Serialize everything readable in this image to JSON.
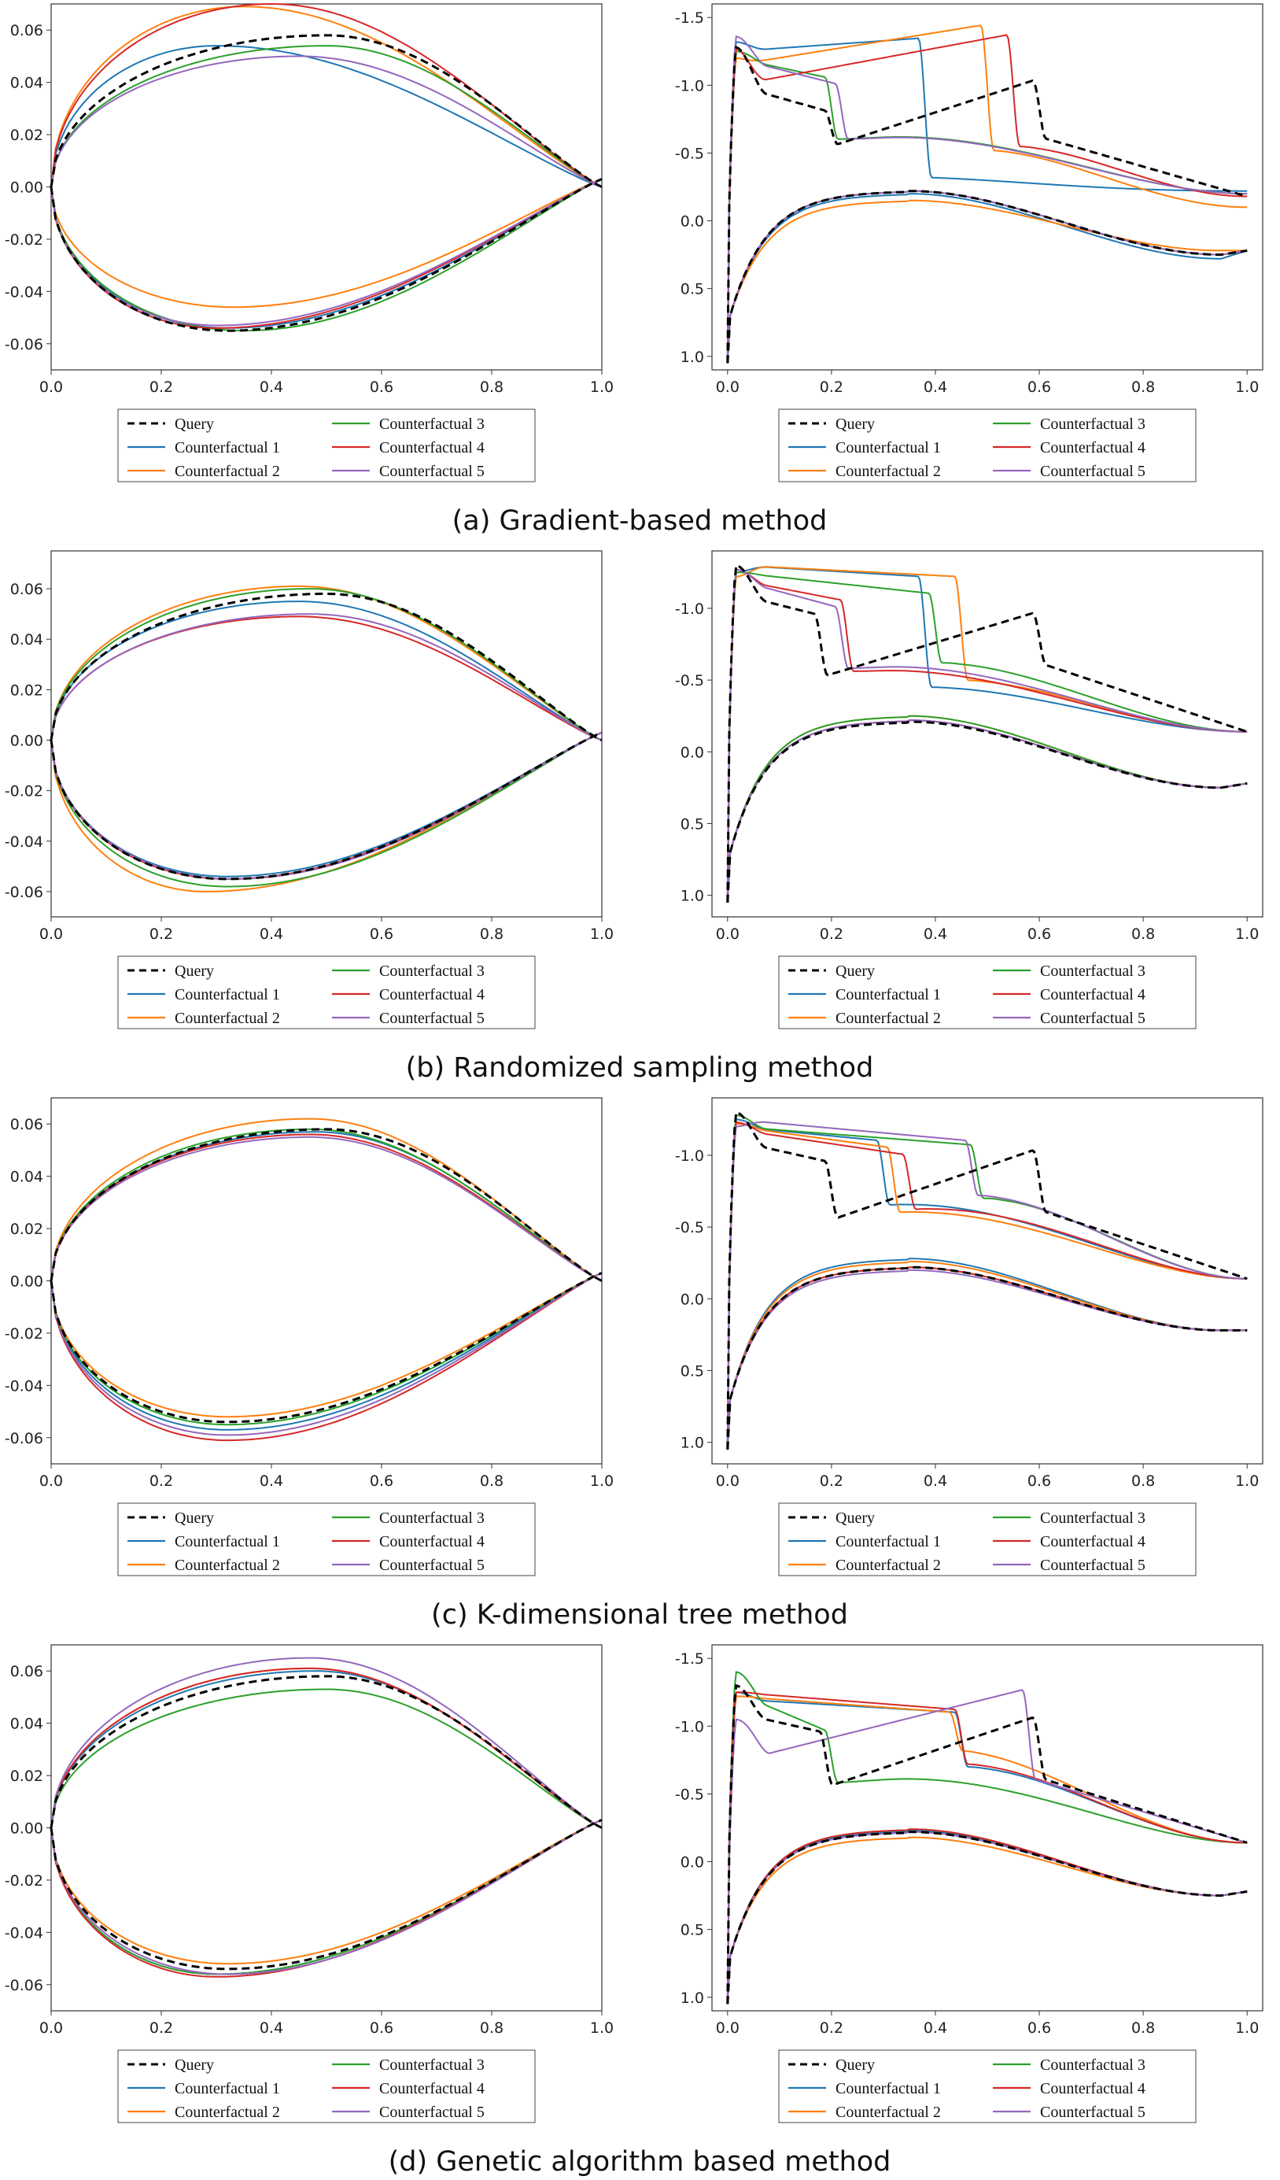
{
  "colors": {
    "Query": "#000000",
    "Counterfactual 1": "#1f77b4",
    "Counterfactual 2": "#ff7f0e",
    "Counterfactual 3": "#2ca02c",
    "Counterfactual 4": "#d62728",
    "Counterfactual 5": "#9467bd"
  },
  "legend_labels": [
    "Query",
    "Counterfactual 1",
    "Counterfactual 2",
    "Counterfactual 3",
    "Counterfactual 4",
    "Counterfactual 5"
  ],
  "chart_data": [
    {
      "type": "line",
      "caption": "(a) Gradient-based method",
      "title": "",
      "xlabel": "",
      "ylabel": "",
      "airfoil": {
        "xlim": [
          0,
          1
        ],
        "ylim": [
          -0.07,
          0.07
        ],
        "xticks": [
          "0.0",
          "0.2",
          "0.4",
          "0.6",
          "0.8",
          "1.0"
        ],
        "yticks": [
          "-0.06",
          "-0.04",
          "-0.02",
          "0.00",
          "0.02",
          "0.04",
          "0.06"
        ],
        "series": [
          {
            "name": "Query",
            "upper_max": 0.058,
            "upper_xmax": 0.5,
            "lower_min": -0.055,
            "lower_xmin": 0.32
          },
          {
            "name": "Counterfactual 1",
            "upper_max": 0.054,
            "upper_xmax": 0.3,
            "lower_min": -0.054,
            "lower_xmin": 0.32
          },
          {
            "name": "Counterfactual 2",
            "upper_max": 0.069,
            "upper_xmax": 0.35,
            "lower_min": -0.046,
            "lower_xmin": 0.33
          },
          {
            "name": "Counterfactual 3",
            "upper_max": 0.054,
            "upper_xmax": 0.5,
            "lower_min": -0.055,
            "lower_xmin": 0.35
          },
          {
            "name": "Counterfactual 4",
            "upper_max": 0.07,
            "upper_xmax": 0.4,
            "lower_min": -0.054,
            "lower_xmin": 0.3
          },
          {
            "name": "Counterfactual 5",
            "upper_max": 0.05,
            "upper_xmax": 0.45,
            "lower_min": -0.053,
            "lower_xmin": 0.3
          }
        ]
      },
      "cp": {
        "xlim": [
          -0.03,
          1.03
        ],
        "ylim": [
          1.1,
          -1.6
        ],
        "xticks": [
          "0.0",
          "0.2",
          "0.4",
          "0.6",
          "0.8",
          "1.0"
        ],
        "yticks": [
          "-1.5",
          "-1.0",
          "-0.5",
          "0.0",
          "0.5",
          "1.0"
        ],
        "series": [
          {
            "name": "Query",
            "peak": -1.28,
            "plateau_start": -1.0,
            "plateau_end": -0.8,
            "shock_x": 0.2,
            "post_start": -0.55,
            "post_end": -1.05,
            "jump_x": 0.6,
            "upper_te": -0.18,
            "lower_mid": -0.22,
            "lower_te": 0.25
          },
          {
            "name": "Counterfactual 1",
            "peak": -1.32,
            "plateau_start": -1.25,
            "plateau_end": -1.35,
            "shock_x": 0.38,
            "post_start": -0.32,
            "post_end": -0.25,
            "jump_x": 0.0,
            "upper_te": -0.22,
            "lower_mid": -0.2,
            "lower_te": 0.28
          },
          {
            "name": "Counterfactual 2",
            "peak": -1.2,
            "plateau_start": -1.15,
            "plateau_end": -1.45,
            "shock_x": 0.5,
            "post_start": -0.52,
            "post_end": -0.45,
            "jump_x": 0.0,
            "upper_te": -0.1,
            "lower_mid": -0.15,
            "lower_te": 0.22
          },
          {
            "name": "Counterfactual 3",
            "peak": -1.25,
            "plateau_start": -1.2,
            "plateau_end": -1.05,
            "shock_x": 0.2,
            "post_start": -0.6,
            "post_end": -0.73,
            "jump_x": 0.0,
            "upper_te": -0.2,
            "lower_mid": -0.22,
            "lower_te": 0.25
          },
          {
            "name": "Counterfactual 4",
            "peak": -1.27,
            "plateau_start": -1.0,
            "plateau_end": -1.38,
            "shock_x": 0.55,
            "post_start": -0.55,
            "post_end": -0.5,
            "jump_x": 0.0,
            "upper_te": -0.18,
            "lower_mid": -0.22,
            "lower_te": 0.25
          },
          {
            "name": "Counterfactual 5",
            "peak": -1.36,
            "plateau_start": -1.2,
            "plateau_end": -1.0,
            "shock_x": 0.22,
            "post_start": -0.6,
            "post_end": -0.72,
            "jump_x": 0.0,
            "upper_te": -0.2,
            "lower_mid": -0.22,
            "lower_te": 0.25
          }
        ]
      }
    },
    {
      "type": "line",
      "caption": "(b) Randomized sampling method",
      "title": "",
      "xlabel": "",
      "ylabel": "",
      "airfoil": {
        "xlim": [
          0,
          1
        ],
        "ylim": [
          -0.07,
          0.075
        ],
        "xticks": [
          "0.0",
          "0.2",
          "0.4",
          "0.6",
          "0.8",
          "1.0"
        ],
        "yticks": [
          "-0.06",
          "-0.04",
          "-0.02",
          "0.00",
          "0.02",
          "0.04",
          "0.06"
        ],
        "series": [
          {
            "name": "Query",
            "upper_max": 0.058,
            "upper_xmax": 0.5,
            "lower_min": -0.055,
            "lower_xmin": 0.32
          },
          {
            "name": "Counterfactual 1",
            "upper_max": 0.055,
            "upper_xmax": 0.45,
            "lower_min": -0.054,
            "lower_xmin": 0.32
          },
          {
            "name": "Counterfactual 2",
            "upper_max": 0.061,
            "upper_xmax": 0.45,
            "lower_min": -0.06,
            "lower_xmin": 0.28
          },
          {
            "name": "Counterfactual 3",
            "upper_max": 0.06,
            "upper_xmax": 0.47,
            "lower_min": -0.058,
            "lower_xmin": 0.32
          },
          {
            "name": "Counterfactual 4",
            "upper_max": 0.049,
            "upper_xmax": 0.45,
            "lower_min": -0.055,
            "lower_xmin": 0.32
          },
          {
            "name": "Counterfactual 5",
            "upper_max": 0.05,
            "upper_xmax": 0.47,
            "lower_min": -0.055,
            "lower_xmin": 0.33
          }
        ]
      },
      "cp": {
        "xlim": [
          -0.03,
          1.03
        ],
        "ylim": [
          1.15,
          -1.4
        ],
        "xticks": [
          "0.0",
          "0.2",
          "0.4",
          "0.6",
          "0.8",
          "1.0"
        ],
        "yticks": [
          "-1.0",
          "-0.5",
          "0.0",
          "0.5",
          "1.0"
        ],
        "series": [
          {
            "name": "Query",
            "peak": -1.3,
            "plateau_start": -1.1,
            "plateau_end": -0.95,
            "shock_x": 0.18,
            "post_start": -0.52,
            "post_end": -0.98,
            "jump_x": 0.6,
            "upper_te": -0.14,
            "lower_mid": -0.21,
            "lower_te": 0.25
          },
          {
            "name": "Counterfactual 1",
            "peak": -1.25,
            "plateau_start": -1.3,
            "plateau_end": -1.22,
            "shock_x": 0.38,
            "post_start": -0.45,
            "post_end": -0.45,
            "jump_x": 0.0,
            "upper_te": -0.14,
            "lower_mid": -0.22,
            "lower_te": 0.25
          },
          {
            "name": "Counterfactual 2",
            "peak": -1.22,
            "plateau_start": -1.3,
            "plateau_end": -1.22,
            "shock_x": 0.45,
            "post_start": -0.5,
            "post_end": -0.45,
            "jump_x": 0.0,
            "upper_te": -0.14,
            "lower_mid": -0.25,
            "lower_te": 0.25
          },
          {
            "name": "Counterfactual 3",
            "peak": -1.25,
            "plateau_start": -1.25,
            "plateau_end": -1.1,
            "shock_x": 0.4,
            "post_start": -0.62,
            "post_end": -0.62,
            "jump_x": 0.0,
            "upper_te": -0.14,
            "lower_mid": -0.25,
            "lower_te": 0.25
          },
          {
            "name": "Counterfactual 4",
            "peak": -1.27,
            "plateau_start": -1.2,
            "plateau_end": -1.05,
            "shock_x": 0.23,
            "post_start": -0.56,
            "post_end": -0.62,
            "jump_x": 0.0,
            "upper_te": -0.14,
            "lower_mid": -0.22,
            "lower_te": 0.25
          },
          {
            "name": "Counterfactual 5",
            "peak": -1.27,
            "plateau_start": -1.2,
            "plateau_end": -1.0,
            "shock_x": 0.22,
            "post_start": -0.58,
            "post_end": -0.68,
            "jump_x": 0.0,
            "upper_te": -0.14,
            "lower_mid": -0.22,
            "lower_te": 0.25
          }
        ]
      }
    },
    {
      "type": "line",
      "caption": "(c) K-dimensional tree method",
      "title": "",
      "xlabel": "",
      "ylabel": "",
      "airfoil": {
        "xlim": [
          0,
          1
        ],
        "ylim": [
          -0.07,
          0.07
        ],
        "xticks": [
          "0.0",
          "0.2",
          "0.4",
          "0.6",
          "0.8",
          "1.0"
        ],
        "yticks": [
          "-0.06",
          "-0.04",
          "-0.02",
          "0.00",
          "0.02",
          "0.04",
          "0.06"
        ],
        "series": [
          {
            "name": "Query",
            "upper_max": 0.058,
            "upper_xmax": 0.5,
            "lower_min": -0.054,
            "lower_xmin": 0.32
          },
          {
            "name": "Counterfactual 1",
            "upper_max": 0.057,
            "upper_xmax": 0.48,
            "lower_min": -0.057,
            "lower_xmin": 0.32
          },
          {
            "name": "Counterfactual 2",
            "upper_max": 0.062,
            "upper_xmax": 0.47,
            "lower_min": -0.052,
            "lower_xmin": 0.32
          },
          {
            "name": "Counterfactual 3",
            "upper_max": 0.058,
            "upper_xmax": 0.47,
            "lower_min": -0.055,
            "lower_xmin": 0.32
          },
          {
            "name": "Counterfactual 4",
            "upper_max": 0.056,
            "upper_xmax": 0.47,
            "lower_min": -0.061,
            "lower_xmin": 0.32
          },
          {
            "name": "Counterfactual 5",
            "upper_max": 0.055,
            "upper_xmax": 0.47,
            "lower_min": -0.059,
            "lower_xmin": 0.32
          }
        ]
      },
      "cp": {
        "xlim": [
          -0.03,
          1.03
        ],
        "ylim": [
          1.15,
          -1.4
        ],
        "xticks": [
          "0.0",
          "0.2",
          "0.4",
          "0.6",
          "0.8",
          "1.0"
        ],
        "yticks": [
          "-1.0",
          "-0.5",
          "0.0",
          "0.5",
          "1.0"
        ],
        "series": [
          {
            "name": "Query",
            "peak": -1.3,
            "plateau_start": -1.1,
            "plateau_end": -0.95,
            "shock_x": 0.2,
            "post_start": -0.55,
            "post_end": -1.05,
            "jump_x": 0.6,
            "upper_te": -0.14,
            "lower_mid": -0.22,
            "lower_te": 0.22
          },
          {
            "name": "Counterfactual 1",
            "peak": -1.25,
            "plateau_start": -1.2,
            "plateau_end": -1.1,
            "shock_x": 0.3,
            "post_start": -0.65,
            "post_end": -0.85,
            "jump_x": 0.0,
            "upper_te": -0.14,
            "lower_mid": -0.28,
            "lower_te": 0.22
          },
          {
            "name": "Counterfactual 2",
            "peak": -1.22,
            "plateau_start": -1.2,
            "plateau_end": -1.05,
            "shock_x": 0.32,
            "post_start": -0.6,
            "post_end": -0.75,
            "jump_x": 0.0,
            "upper_te": -0.14,
            "lower_mid": -0.26,
            "lower_te": 0.22
          },
          {
            "name": "Counterfactual 3",
            "peak": -1.28,
            "plateau_start": -1.2,
            "plateau_end": -1.07,
            "shock_x": 0.48,
            "post_start": -0.7,
            "post_end": -0.72,
            "jump_x": 0.0,
            "upper_te": -0.14,
            "lower_mid": -0.22,
            "lower_te": 0.22
          },
          {
            "name": "Counterfactual 4",
            "peak": -1.23,
            "plateau_start": -1.18,
            "plateau_end": -1.0,
            "shock_x": 0.35,
            "post_start": -0.62,
            "post_end": -0.8,
            "jump_x": 0.0,
            "upper_te": -0.14,
            "lower_mid": -0.22,
            "lower_te": 0.22
          },
          {
            "name": "Counterfactual 5",
            "peak": -1.2,
            "plateau_start": -1.25,
            "plateau_end": -1.1,
            "shock_x": 0.47,
            "post_start": -0.72,
            "post_end": -0.72,
            "jump_x": 0.0,
            "upper_te": -0.14,
            "lower_mid": -0.2,
            "lower_te": 0.22
          }
        ]
      }
    },
    {
      "type": "line",
      "caption": "(d) Genetic algorithm based method",
      "title": "",
      "xlabel": "",
      "ylabel": "",
      "airfoil": {
        "xlim": [
          0,
          1
        ],
        "ylim": [
          -0.07,
          0.07
        ],
        "xticks": [
          "0.0",
          "0.2",
          "0.4",
          "0.6",
          "0.8",
          "1.0"
        ],
        "yticks": [
          "-0.06",
          "-0.04",
          "-0.02",
          "0.00",
          "0.02",
          "0.04",
          "0.06"
        ],
        "series": [
          {
            "name": "Query",
            "upper_max": 0.058,
            "upper_xmax": 0.5,
            "lower_min": -0.054,
            "lower_xmin": 0.32
          },
          {
            "name": "Counterfactual 1",
            "upper_max": 0.06,
            "upper_xmax": 0.48,
            "lower_min": -0.056,
            "lower_xmin": 0.3
          },
          {
            "name": "Counterfactual 2",
            "upper_max": 0.061,
            "upper_xmax": 0.47,
            "lower_min": -0.052,
            "lower_xmin": 0.32
          },
          {
            "name": "Counterfactual 3",
            "upper_max": 0.053,
            "upper_xmax": 0.5,
            "lower_min": -0.056,
            "lower_xmin": 0.3
          },
          {
            "name": "Counterfactual 4",
            "upper_max": 0.061,
            "upper_xmax": 0.47,
            "lower_min": -0.057,
            "lower_xmin": 0.3
          },
          {
            "name": "Counterfactual 5",
            "upper_max": 0.065,
            "upper_xmax": 0.47,
            "lower_min": -0.056,
            "lower_xmin": 0.32
          }
        ]
      },
      "cp": {
        "xlim": [
          -0.03,
          1.03
        ],
        "ylim": [
          1.1,
          -1.6
        ],
        "xticks": [
          "0.0",
          "0.2",
          "0.4",
          "0.6",
          "0.8",
          "1.0"
        ],
        "yticks": [
          "-1.5",
          "-1.0",
          "-0.5",
          "0.0",
          "0.5",
          "1.0"
        ],
        "series": [
          {
            "name": "Query",
            "peak": -1.3,
            "plateau_start": -1.1,
            "plateau_end": -0.95,
            "shock_x": 0.19,
            "post_start": -0.55,
            "post_end": -1.08,
            "jump_x": 0.6,
            "upper_te": -0.14,
            "lower_mid": -0.22,
            "lower_te": 0.25
          },
          {
            "name": "Counterfactual 1",
            "peak": -1.25,
            "plateau_start": -1.2,
            "plateau_end": -1.1,
            "shock_x": 0.45,
            "post_start": -0.7,
            "post_end": -0.68,
            "jump_x": 0.0,
            "upper_te": -0.14,
            "lower_mid": -0.23,
            "lower_te": 0.25
          },
          {
            "name": "Counterfactual 2",
            "peak": -1.22,
            "plateau_start": -1.22,
            "plateau_end": -1.1,
            "shock_x": 0.44,
            "post_start": -0.82,
            "post_end": -0.72,
            "jump_x": 0.0,
            "upper_te": -0.14,
            "lower_mid": -0.18,
            "lower_te": 0.25
          },
          {
            "name": "Counterfactual 3",
            "peak": -1.4,
            "plateau_start": -1.25,
            "plateau_end": -0.95,
            "shock_x": 0.2,
            "post_start": -0.58,
            "post_end": -0.78,
            "jump_x": 0.0,
            "upper_te": -0.14,
            "lower_mid": -0.24,
            "lower_te": 0.25
          },
          {
            "name": "Counterfactual 4",
            "peak": -1.25,
            "plateau_start": -1.25,
            "plateau_end": -1.12,
            "shock_x": 0.45,
            "post_start": -0.72,
            "post_end": -0.68,
            "jump_x": 0.0,
            "upper_te": -0.14,
            "lower_mid": -0.24,
            "lower_te": 0.25
          },
          {
            "name": "Counterfactual 5",
            "peak": -1.05,
            "plateau_start": -0.95,
            "plateau_end": -0.8,
            "shock_x": 0.0,
            "post_start": -0.8,
            "post_end": -1.28,
            "jump_x": 0.58,
            "upper_te": -0.14,
            "lower_mid": -0.22,
            "lower_te": 0.25
          }
        ]
      }
    }
  ]
}
